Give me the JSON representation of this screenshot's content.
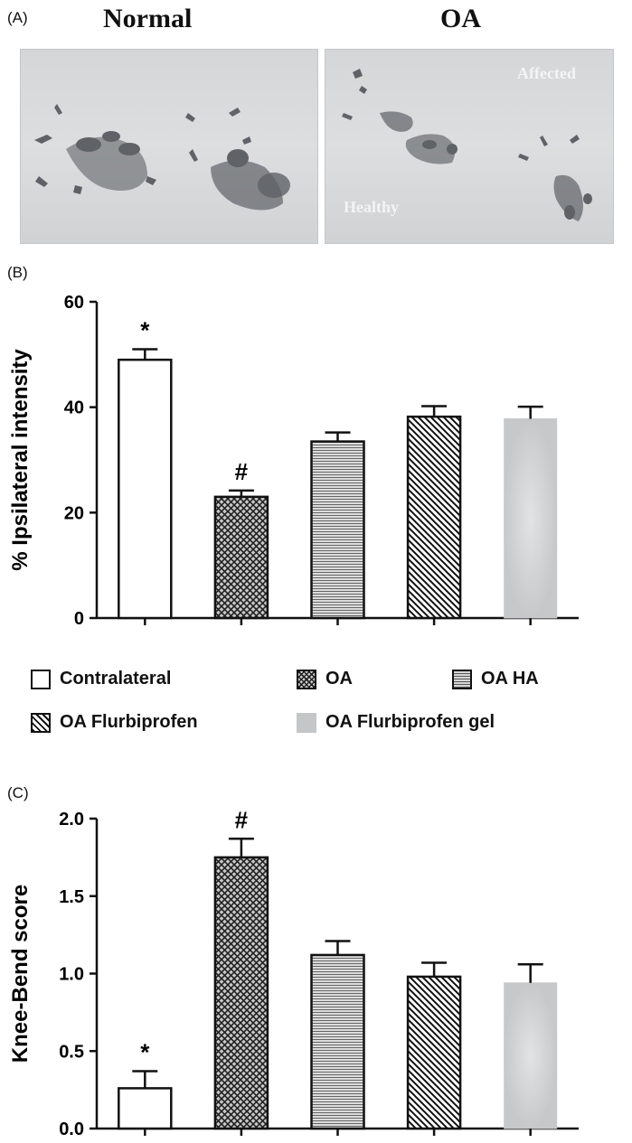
{
  "panel_a": {
    "letter": "(A)",
    "left_title": "Normal",
    "right_title": "OA",
    "label_affected": "Affected",
    "label_healthy": "Healthy"
  },
  "panel_b_letter": "(B)",
  "panel_c_letter": "(C)",
  "legend": [
    {
      "label": "Contralateral",
      "pattern": "white"
    },
    {
      "label": "OA",
      "pattern": "crosshatch"
    },
    {
      "label": "OA HA",
      "pattern": "horizontal"
    },
    {
      "label": "OA Flurbiprofen",
      "pattern": "diagonal"
    },
    {
      "label": "OA Flurbiprofen gel",
      "pattern": "gray"
    }
  ],
  "chart_data": [
    {
      "type": "bar",
      "ylabel": "% Ipsilateral intensity",
      "ylim": [
        0,
        60
      ],
      "yticks": [
        "0",
        "20",
        "40",
        "60"
      ],
      "series": [
        {
          "name": "Contralateral",
          "value": 49,
          "error": 2,
          "mark": "*"
        },
        {
          "name": "OA",
          "value": 23,
          "error": 1.2,
          "mark": "#"
        },
        {
          "name": "OA HA",
          "value": 33.5,
          "error": 1.7,
          "mark": ""
        },
        {
          "name": "OA Flurbiprofen",
          "value": 38.2,
          "error": 2,
          "mark": ""
        },
        {
          "name": "OA Flurbiprofen gel",
          "value": 37.8,
          "error": 2.3,
          "mark": ""
        }
      ]
    },
    {
      "type": "bar",
      "ylabel": "Knee-Bend score",
      "ylim": [
        0,
        2
      ],
      "yticks": [
        "0.0",
        "0.5",
        "1.0",
        "1.5",
        "2.0"
      ],
      "series": [
        {
          "name": "Contralateral",
          "value": 0.26,
          "error": 0.11,
          "mark": "*"
        },
        {
          "name": "OA",
          "value": 1.75,
          "error": 0.12,
          "mark": "#"
        },
        {
          "name": "OA HA",
          "value": 1.12,
          "error": 0.09,
          "mark": ""
        },
        {
          "name": "OA Flurbiprofen",
          "value": 0.98,
          "error": 0.09,
          "mark": ""
        },
        {
          "name": "OA Flurbiprofen gel",
          "value": 0.94,
          "error": 0.12,
          "mark": ""
        }
      ]
    }
  ]
}
